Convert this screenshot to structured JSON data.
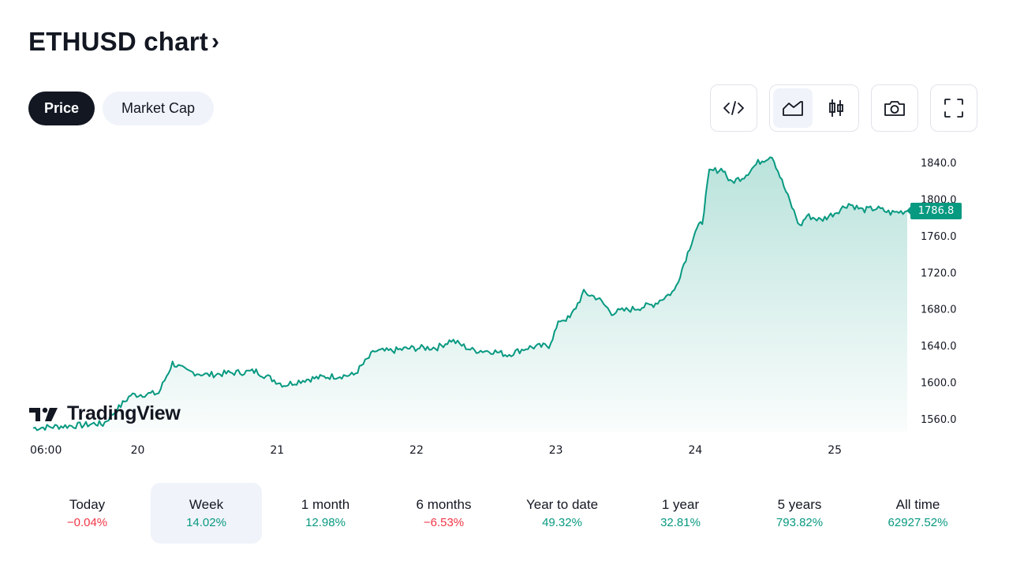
{
  "header": {
    "title": "ETHUSD chart",
    "chevron": "›"
  },
  "tabs": [
    {
      "label": "Price",
      "active": true
    },
    {
      "label": "Market Cap",
      "active": false
    }
  ],
  "toolbar": {
    "embed_icon": "code-icon",
    "line_icon": "area-chart-icon",
    "candle_icon": "candlestick-icon",
    "snapshot_icon": "camera-icon",
    "fullscreen_icon": "fullscreen-icon"
  },
  "colors": {
    "line": "#089981",
    "negative": "#f23645",
    "positive": "#089981"
  },
  "logo": {
    "text": "TradingView"
  },
  "chart_data": {
    "type": "area",
    "symbol": "ETHUSD",
    "last_price": "1786.8",
    "y_ticks": [
      "1840.0",
      "1800.0",
      "1760.0",
      "1720.0",
      "1680.0",
      "1640.0",
      "1600.0",
      "1560.0"
    ],
    "ylim": [
      1545,
      1850
    ],
    "x_ticks": [
      "06:00",
      "20",
      "21",
      "22",
      "23",
      "24",
      "25"
    ],
    "x_tick_positions_days": [
      0,
      0.75,
      1.75,
      2.75,
      3.75,
      4.75,
      5.75
    ],
    "x": [
      0.0,
      0.1,
      0.2,
      0.35,
      0.45,
      0.5,
      0.7,
      0.9,
      1.0,
      1.1,
      1.25,
      1.4,
      1.6,
      1.8,
      1.95,
      2.1,
      2.3,
      2.45,
      2.55,
      2.7,
      2.9,
      3.0,
      3.15,
      3.3,
      3.4,
      3.55,
      3.7,
      3.78,
      3.85,
      3.95,
      4.05,
      4.15,
      4.3,
      4.45,
      4.6,
      4.75,
      4.8,
      4.85,
      4.95,
      5.0,
      5.1,
      5.2,
      5.3,
      5.4,
      5.5,
      5.55,
      5.65,
      5.75,
      5.85,
      5.95,
      6.05,
      6.15,
      6.27
    ],
    "values": [
      1550,
      1551,
      1552,
      1553,
      1555,
      1554,
      1586,
      1588,
      1621,
      1612,
      1608,
      1610,
      1612,
      1597,
      1603,
      1606,
      1608,
      1634,
      1634,
      1637,
      1638,
      1646,
      1635,
      1634,
      1630,
      1638,
      1640,
      1668,
      1670,
      1698,
      1692,
      1676,
      1680,
      1685,
      1700,
      1765,
      1775,
      1830,
      1833,
      1818,
      1825,
      1840,
      1848,
      1808,
      1770,
      1782,
      1777,
      1785,
      1795,
      1788,
      1790,
      1785,
      1787
    ],
    "percent_format": "{label} {value}"
  },
  "performance": [
    {
      "label": "Today",
      "value": "−0.04%",
      "sign": "neg"
    },
    {
      "label": "Week",
      "value": "14.02%",
      "sign": "pos",
      "selected": true
    },
    {
      "label": "1 month",
      "value": "12.98%",
      "sign": "pos"
    },
    {
      "label": "6 months",
      "value": "−6.53%",
      "sign": "neg"
    },
    {
      "label": "Year to date",
      "value": "49.32%",
      "sign": "pos"
    },
    {
      "label": "1 year",
      "value": "32.81%",
      "sign": "pos"
    },
    {
      "label": "5 years",
      "value": "793.82%",
      "sign": "pos"
    },
    {
      "label": "All time",
      "value": "62927.52%",
      "sign": "pos"
    }
  ]
}
